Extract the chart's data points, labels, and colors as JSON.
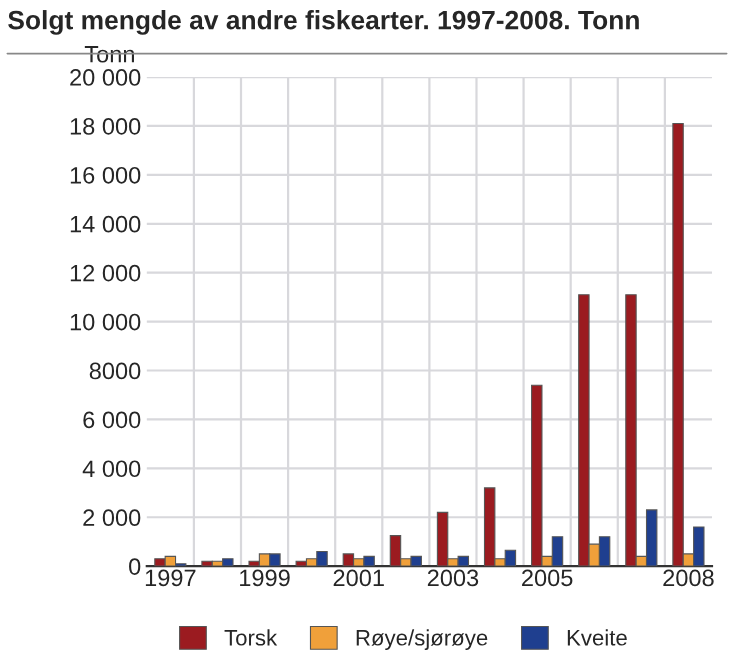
{
  "chart_data": {
    "type": "bar",
    "title": "Solgt mengde av andre fiskearter. 1997-2008. Tonn",
    "ylabel": "Tonn",
    "categories": [
      "1997",
      null,
      "1999",
      null,
      "2001",
      null,
      "2003",
      null,
      "2005",
      null,
      null,
      "2008"
    ],
    "series": [
      {
        "name": "Torsk",
        "color": "#9b1b20",
        "values": [
          300,
          200,
          200,
          200,
          500,
          1250,
          2200,
          3200,
          7400,
          11100,
          11100,
          18100
        ]
      },
      {
        "name": "Røye/sjørøye",
        "color": "#f0a03a",
        "values": [
          400,
          200,
          500,
          300,
          300,
          300,
          300,
          300,
          400,
          900,
          400,
          500
        ]
      },
      {
        "name": "Kveite",
        "color": "#1f3f8f",
        "values": [
          100,
          300,
          500,
          600,
          400,
          400,
          400,
          650,
          1200,
          1200,
          2300,
          1600
        ]
      }
    ],
    "ylim": [
      0,
      20000
    ],
    "yticks": [
      0,
      {
        "value": 2000,
        "label": "2 000"
      },
      {
        "value": 4000,
        "label": "4 000"
      },
      {
        "value": 6000,
        "label": "6 000"
      },
      8000,
      {
        "value": 10000,
        "label": "10 000"
      },
      {
        "value": 12000,
        "label": "12 000"
      },
      {
        "value": 14000,
        "label": "14 000"
      },
      {
        "value": 16000,
        "label": "16 000"
      },
      {
        "value": 18000,
        "label": "18 000"
      },
      {
        "value": 20000,
        "label": "20 000"
      }
    ],
    "grid": true,
    "legend": "bottom"
  }
}
